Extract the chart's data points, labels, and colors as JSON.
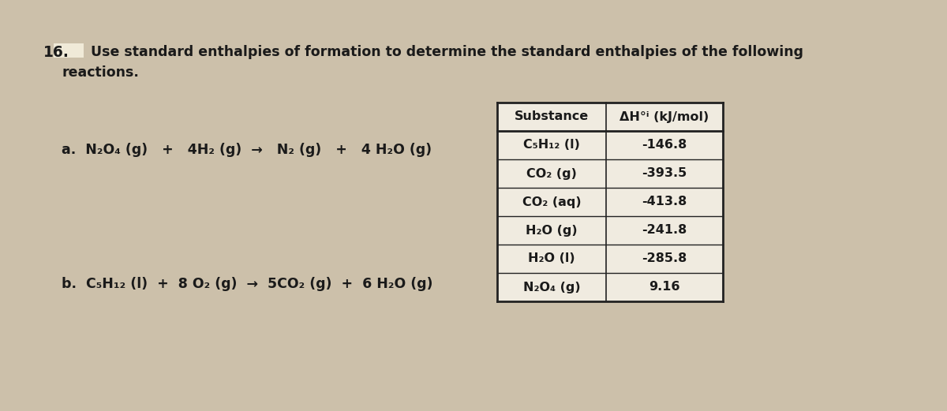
{
  "background_color": "#ccc0aa",
  "question_number": "16.",
  "title_line1": "Use standard enthalpies of formation to determine the standard enthalpies of the following",
  "title_line2": "reactions.",
  "reaction_a": "a.  N₂O₄ (g)   +   4H₂ (g)  →   N₂ (g)   +   4 H₂O (g)",
  "reaction_b": "b.  C₅H₁₂ (l)  +  8 O₂ (g)  →  5CO₂ (g)  +  6 H₂O (g)",
  "table_header": [
    "Substance",
    "ΔH°ⁱ (kJ/mol)"
  ],
  "table_data": [
    [
      "C₅H₁₂ (l)",
      "-146.8"
    ],
    [
      "CO₂ (g)",
      "-393.5"
    ],
    [
      "CO₂ (aq)",
      "-413.8"
    ],
    [
      "H₂O (g)",
      "-241.8"
    ],
    [
      "H₂O (l)",
      "-285.8"
    ],
    [
      "N₂O₄ (g)",
      "9.16"
    ]
  ],
  "text_color": "#1a1a1a",
  "font_size_title": 12.5,
  "font_size_reaction": 12.5,
  "font_size_table": 11.5,
  "font_size_number": 13.5,
  "highlight_rect_color": "#e8ddd0"
}
